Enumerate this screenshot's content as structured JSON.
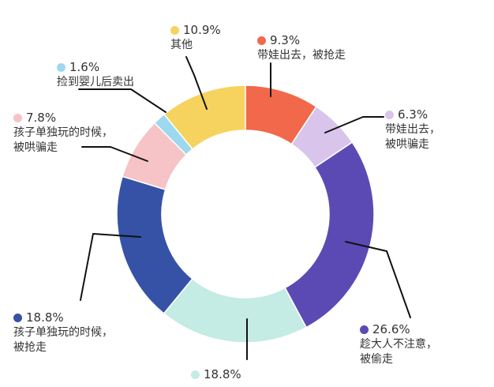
{
  "chart_data": {
    "type": "pie",
    "donut": true,
    "slices": [
      {
        "label_lines": [
          "带娃出去，被抢走"
        ],
        "value": 9.3,
        "value_text": "9.3%",
        "color": "#F2684A"
      },
      {
        "label_lines": [
          "带娃出去，",
          "被哄骗走"
        ],
        "value": 6.3,
        "value_text": "6.3%",
        "color": "#D9C4EB"
      },
      {
        "label_lines": [
          "趁大人不注意，",
          "被偷走"
        ],
        "value": 26.6,
        "value_text": "26.6%",
        "color": "#5C4AB4"
      },
      {
        "label_lines": [],
        "value": 18.8,
        "value_text": "18.8%",
        "color": "#C4EBE4"
      },
      {
        "label_lines": [
          "孩子单独玩的时候，",
          "被抢走"
        ],
        "value": 18.8,
        "value_text": "18.8%",
        "color": "#3552A6"
      },
      {
        "label_lines": [
          "孩子单独玩的时候，",
          "被哄骗走"
        ],
        "value": 7.8,
        "value_text": "7.8%",
        "color": "#F6C3C6"
      },
      {
        "label_lines": [
          "捡到婴儿后卖出"
        ],
        "value": 1.6,
        "value_text": "1.6%",
        "color": "#9ED8EE"
      },
      {
        "label_lines": [
          "其他"
        ],
        "value": 10.9,
        "value_text": "10.9%",
        "color": "#F6D35E"
      }
    ]
  }
}
